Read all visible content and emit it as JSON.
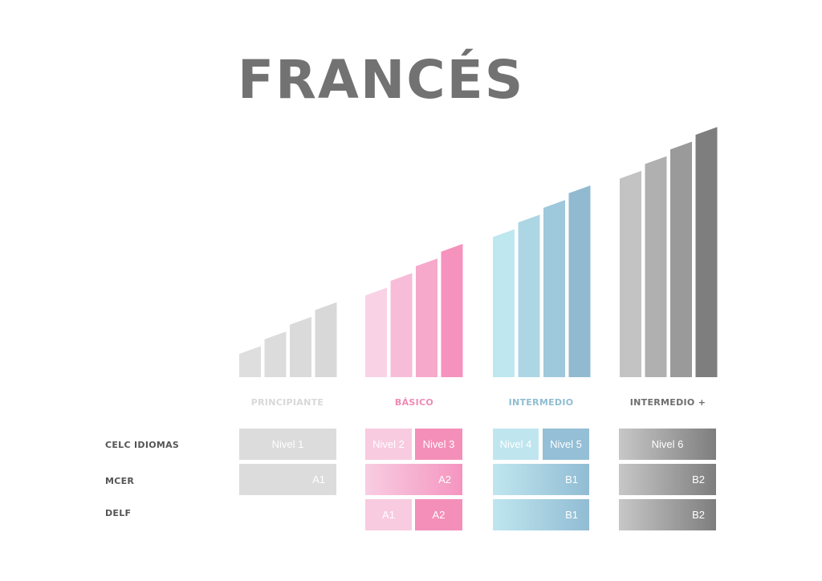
{
  "title": "FRANCÉS",
  "levels": [
    {
      "label": "PRINCIPIANTE",
      "color": "#d8d8d8",
      "bar_colors": [
        "#dedede",
        "#dcdcdc",
        "#dadada",
        "#d8d8d8"
      ]
    },
    {
      "label": "BÁSICO",
      "color": "#f08ab5",
      "bar_colors": [
        "#f9d2e5",
        "#f7bdd8",
        "#f6a9ca",
        "#f593be"
      ]
    },
    {
      "label": "INTERMEDIO",
      "color": "#8fbdd2",
      "bar_colors": [
        "#bee7ef",
        "#acd6e4",
        "#9ec8dc",
        "#91bad0"
      ]
    },
    {
      "label": "INTERMEDIO +",
      "color": "#6e6e6e",
      "bar_colors": [
        "#c3c3c3",
        "#b0b0b0",
        "#9a9a9a",
        "#7e7e7e"
      ]
    }
  ],
  "rows": [
    "CELC IDIOMAS",
    "MCER",
    "DELF"
  ],
  "cells": {
    "n1": "Nivel 1",
    "n2": "Nivel 2",
    "n3": "Nivel 3",
    "n4": "Nivel 4",
    "n5": "Nivel 5",
    "n6": "Nivel 6",
    "m1": "A1",
    "m2": "A2",
    "m3": "B1",
    "m4": "B2",
    "d2a": "A1",
    "d2b": "A2",
    "d3": "B1",
    "d4": "B2"
  }
}
